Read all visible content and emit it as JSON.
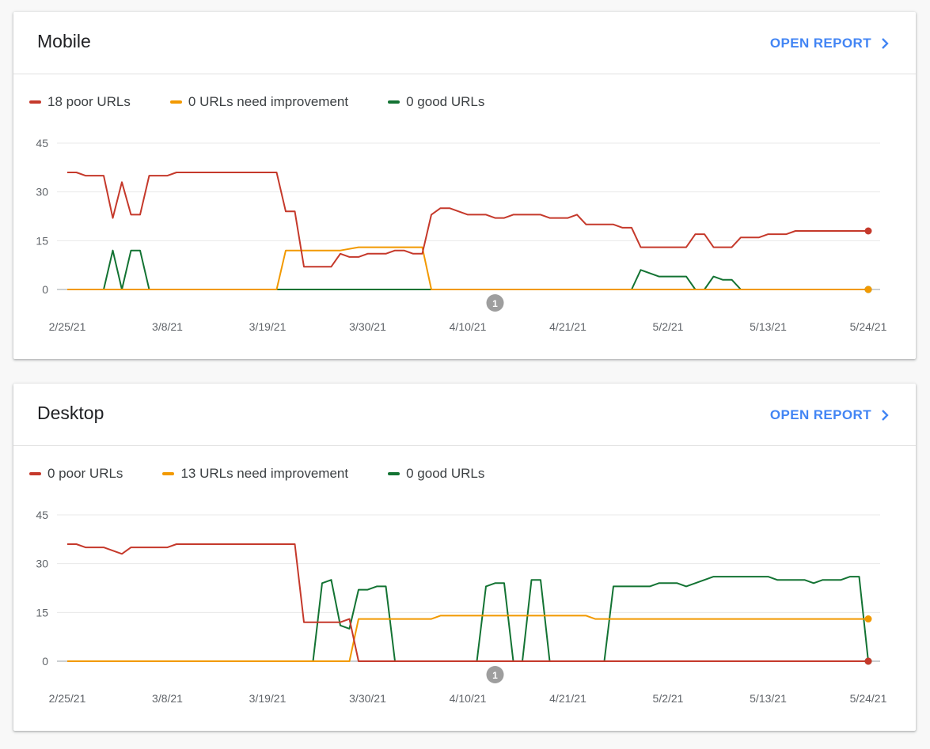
{
  "cards": [
    {
      "title": "Mobile",
      "open_report": "OPEN REPORT",
      "legend": [
        "18 poor URLs",
        "0 URLs need improvement",
        "0 good URLs"
      ],
      "annotation_label": "1",
      "annotation_date": "4/13/21"
    },
    {
      "title": "Desktop",
      "open_report": "OPEN REPORT",
      "legend": [
        "0 poor URLs",
        "13 URLs need improvement",
        "0 good URLs"
      ],
      "annotation_label": "1",
      "annotation_date": "4/13/21"
    }
  ],
  "colors": {
    "poor": "#c5392b",
    "needs": "#f29900",
    "good": "#137333",
    "accent": "#4285f4",
    "grid": "#e8e8e8"
  },
  "chart_data": [
    {
      "type": "line",
      "title": "Mobile",
      "xlabel": "",
      "ylabel": "",
      "x_ticks": [
        "2/25/21",
        "3/8/21",
        "3/19/21",
        "3/30/21",
        "4/10/21",
        "4/21/21",
        "5/2/21",
        "5/13/21",
        "5/24/21"
      ],
      "y_ticks": [
        0,
        15,
        30,
        45
      ],
      "ylim": [
        0,
        45
      ],
      "xlim": [
        "2/25/21",
        "5/24/21"
      ],
      "grid": true,
      "legend_position": "top-left",
      "series": [
        {
          "name": "poor URLs",
          "color_key": "poor",
          "points": [
            [
              "2/25/21",
              36
            ],
            [
              "2/26/21",
              36
            ],
            [
              "2/27/21",
              35
            ],
            [
              "3/1/21",
              35
            ],
            [
              "3/2/21",
              22
            ],
            [
              "3/3/21",
              33
            ],
            [
              "3/4/21",
              23
            ],
            [
              "3/5/21",
              23
            ],
            [
              "3/6/21",
              35
            ],
            [
              "3/8/21",
              35
            ],
            [
              "3/9/21",
              36
            ],
            [
              "3/20/21",
              36
            ],
            [
              "3/21/21",
              24
            ],
            [
              "3/22/21",
              24
            ],
            [
              "3/23/21",
              7
            ],
            [
              "3/26/21",
              7
            ],
            [
              "3/27/21",
              11
            ],
            [
              "3/28/21",
              10
            ],
            [
              "3/29/21",
              10
            ],
            [
              "3/30/21",
              11
            ],
            [
              "4/1/21",
              11
            ],
            [
              "4/2/21",
              12
            ],
            [
              "4/3/21",
              12
            ],
            [
              "4/4/21",
              11
            ],
            [
              "4/5/21",
              11
            ],
            [
              "4/6/21",
              23
            ],
            [
              "4/7/21",
              25
            ],
            [
              "4/8/21",
              25
            ],
            [
              "4/10/21",
              23
            ],
            [
              "4/12/21",
              23
            ],
            [
              "4/13/21",
              22
            ],
            [
              "4/14/21",
              22
            ],
            [
              "4/15/21",
              23
            ],
            [
              "4/18/21",
              23
            ],
            [
              "4/19/21",
              22
            ],
            [
              "4/21/21",
              22
            ],
            [
              "4/22/21",
              23
            ],
            [
              "4/23/21",
              20
            ],
            [
              "4/26/21",
              20
            ],
            [
              "4/27/21",
              19
            ],
            [
              "4/28/21",
              19
            ],
            [
              "4/29/21",
              13
            ],
            [
              "5/4/21",
              13
            ],
            [
              "5/5/21",
              17
            ],
            [
              "5/6/21",
              17
            ],
            [
              "5/7/21",
              13
            ],
            [
              "5/9/21",
              13
            ],
            [
              "5/10/21",
              16
            ],
            [
              "5/12/21",
              16
            ],
            [
              "5/13/21",
              17
            ],
            [
              "5/15/21",
              17
            ],
            [
              "5/16/21",
              18
            ],
            [
              "5/24/21",
              18
            ]
          ]
        },
        {
          "name": "URLs need improvement",
          "color_key": "needs",
          "points": [
            [
              "2/25/21",
              0
            ],
            [
              "3/20/21",
              0
            ],
            [
              "3/21/21",
              12
            ],
            [
              "3/27/21",
              12
            ],
            [
              "3/29/21",
              13
            ],
            [
              "4/5/21",
              13
            ],
            [
              "4/6/21",
              0
            ],
            [
              "5/24/21",
              0
            ]
          ]
        },
        {
          "name": "good URLs",
          "color_key": "good",
          "points": [
            [
              "2/25/21",
              0
            ],
            [
              "3/1/21",
              0
            ],
            [
              "3/2/21",
              12
            ],
            [
              "3/3/21",
              0
            ],
            [
              "3/4/21",
              12
            ],
            [
              "3/5/21",
              12
            ],
            [
              "3/6/21",
              0
            ],
            [
              "4/28/21",
              0
            ],
            [
              "4/29/21",
              6
            ],
            [
              "4/30/21",
              5
            ],
            [
              "5/1/21",
              4
            ],
            [
              "5/4/21",
              4
            ],
            [
              "5/5/21",
              0
            ],
            [
              "5/6/21",
              0
            ],
            [
              "5/7/21",
              4
            ],
            [
              "5/8/21",
              3
            ],
            [
              "5/9/21",
              3
            ],
            [
              "5/10/21",
              0
            ],
            [
              "5/24/21",
              0
            ]
          ]
        }
      ]
    },
    {
      "type": "line",
      "title": "Desktop",
      "xlabel": "",
      "ylabel": "",
      "x_ticks": [
        "2/25/21",
        "3/8/21",
        "3/19/21",
        "3/30/21",
        "4/10/21",
        "4/21/21",
        "5/2/21",
        "5/13/21",
        "5/24/21"
      ],
      "y_ticks": [
        0,
        15,
        30,
        45
      ],
      "ylim": [
        0,
        45
      ],
      "xlim": [
        "2/25/21",
        "5/24/21"
      ],
      "grid": true,
      "legend_position": "top-left",
      "series": [
        {
          "name": "poor URLs",
          "color_key": "poor",
          "points": [
            [
              "2/25/21",
              36
            ],
            [
              "2/26/21",
              36
            ],
            [
              "2/27/21",
              35
            ],
            [
              "3/1/21",
              35
            ],
            [
              "3/3/21",
              33
            ],
            [
              "3/4/21",
              35
            ],
            [
              "3/8/21",
              35
            ],
            [
              "3/9/21",
              36
            ],
            [
              "3/22/21",
              36
            ],
            [
              "3/23/21",
              12
            ],
            [
              "3/27/21",
              12
            ],
            [
              "3/28/21",
              13
            ],
            [
              "3/29/21",
              0
            ],
            [
              "5/24/21",
              0
            ]
          ]
        },
        {
          "name": "URLs need improvement",
          "color_key": "needs",
          "points": [
            [
              "2/25/21",
              0
            ],
            [
              "3/28/21",
              0
            ],
            [
              "3/29/21",
              13
            ],
            [
              "4/6/21",
              13
            ],
            [
              "4/7/21",
              14
            ],
            [
              "4/23/21",
              14
            ],
            [
              "4/24/21",
              13
            ],
            [
              "5/24/21",
              13
            ]
          ]
        },
        {
          "name": "good URLs",
          "color_key": "good",
          "points": [
            [
              "2/25/21",
              0
            ],
            [
              "3/24/21",
              0
            ],
            [
              "3/25/21",
              24
            ],
            [
              "3/26/21",
              25
            ],
            [
              "3/27/21",
              11
            ],
            [
              "3/28/21",
              10
            ],
            [
              "3/29/21",
              22
            ],
            [
              "3/30/21",
              22
            ],
            [
              "3/31/21",
              23
            ],
            [
              "4/1/21",
              23
            ],
            [
              "4/2/21",
              0
            ],
            [
              "4/11/21",
              0
            ],
            [
              "4/12/21",
              23
            ],
            [
              "4/13/21",
              24
            ],
            [
              "4/14/21",
              24
            ],
            [
              "4/15/21",
              0
            ],
            [
              "4/16/21",
              0
            ],
            [
              "4/17/21",
              25
            ],
            [
              "4/18/21",
              25
            ],
            [
              "4/19/21",
              0
            ],
            [
              "4/25/21",
              0
            ],
            [
              "4/26/21",
              23
            ],
            [
              "4/30/21",
              23
            ],
            [
              "5/1/21",
              24
            ],
            [
              "5/3/21",
              24
            ],
            [
              "5/4/21",
              23
            ],
            [
              "5/7/21",
              26
            ],
            [
              "5/13/21",
              26
            ],
            [
              "5/14/21",
              25
            ],
            [
              "5/17/21",
              25
            ],
            [
              "5/18/21",
              24
            ],
            [
              "5/19/21",
              25
            ],
            [
              "5/21/21",
              25
            ],
            [
              "5/22/21",
              26
            ],
            [
              "5/23/21",
              26
            ],
            [
              "5/24/21",
              0
            ]
          ]
        }
      ]
    }
  ]
}
